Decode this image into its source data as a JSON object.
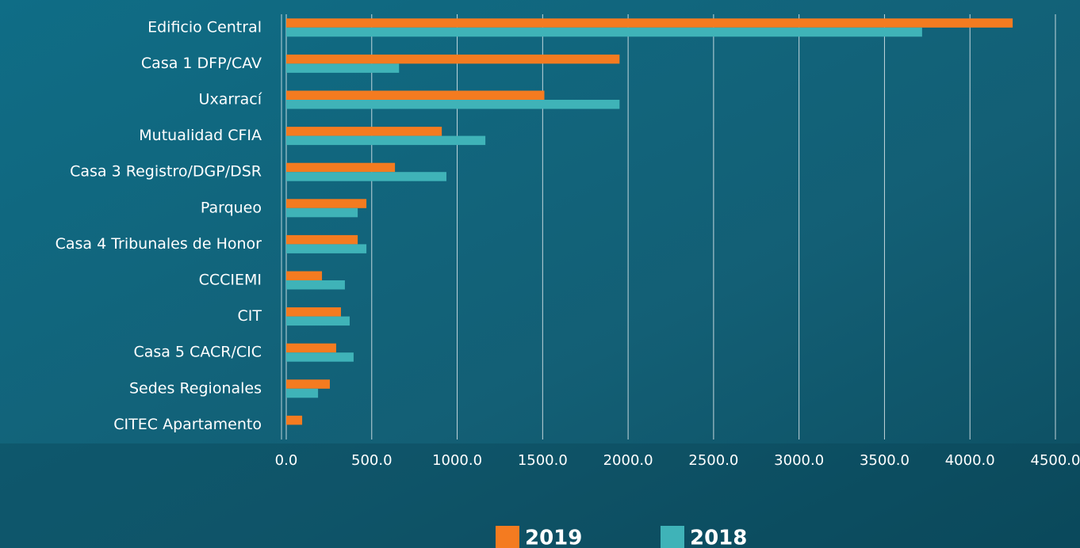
{
  "chart_data": {
    "type": "bar",
    "orientation": "horizontal",
    "categories": [
      "Edificio Central",
      "Casa 1 DFP/CAV",
      "Uxarrací",
      "Mutualidad CFIA",
      "Casa 3 Registro/DGP/DSR",
      "Parqueo",
      "Casa 4 Tribunales de Honor",
      "CCCIEMI",
      "CIT",
      "Casa 5 CACR/CIC",
      "Sedes Regionales",
      "CITEC Apartamento"
    ],
    "series": [
      {
        "name": "2019",
        "color": "#f47b20",
        "values": [
          4250,
          1950,
          1510,
          910,
          636,
          469,
          418,
          209,
          320,
          292,
          255,
          93
        ]
      },
      {
        "name": "2018",
        "color": "#3fb3b8",
        "values": [
          3720,
          660,
          1950,
          1165,
          937,
          418,
          469,
          343,
          371,
          394,
          186,
          null
        ]
      }
    ],
    "xlim": [
      0,
      4500
    ],
    "xticks": [
      {
        "value": 0,
        "label": "0.0"
      },
      {
        "value": 500,
        "label": "500.0"
      },
      {
        "value": 1000,
        "label": "1000.0"
      },
      {
        "value": 1500,
        "label": "1500.0"
      },
      {
        "value": 2000,
        "label": "2000.0"
      },
      {
        "value": 2500,
        "label": "2500.0"
      },
      {
        "value": 3000,
        "label": "3000.0"
      },
      {
        "value": 3500,
        "label": "3500.0"
      },
      {
        "value": 4000,
        "label": "4000.0"
      },
      {
        "value": 4500,
        "label": "4500.0"
      }
    ],
    "grid": true,
    "legend": "bottom"
  }
}
